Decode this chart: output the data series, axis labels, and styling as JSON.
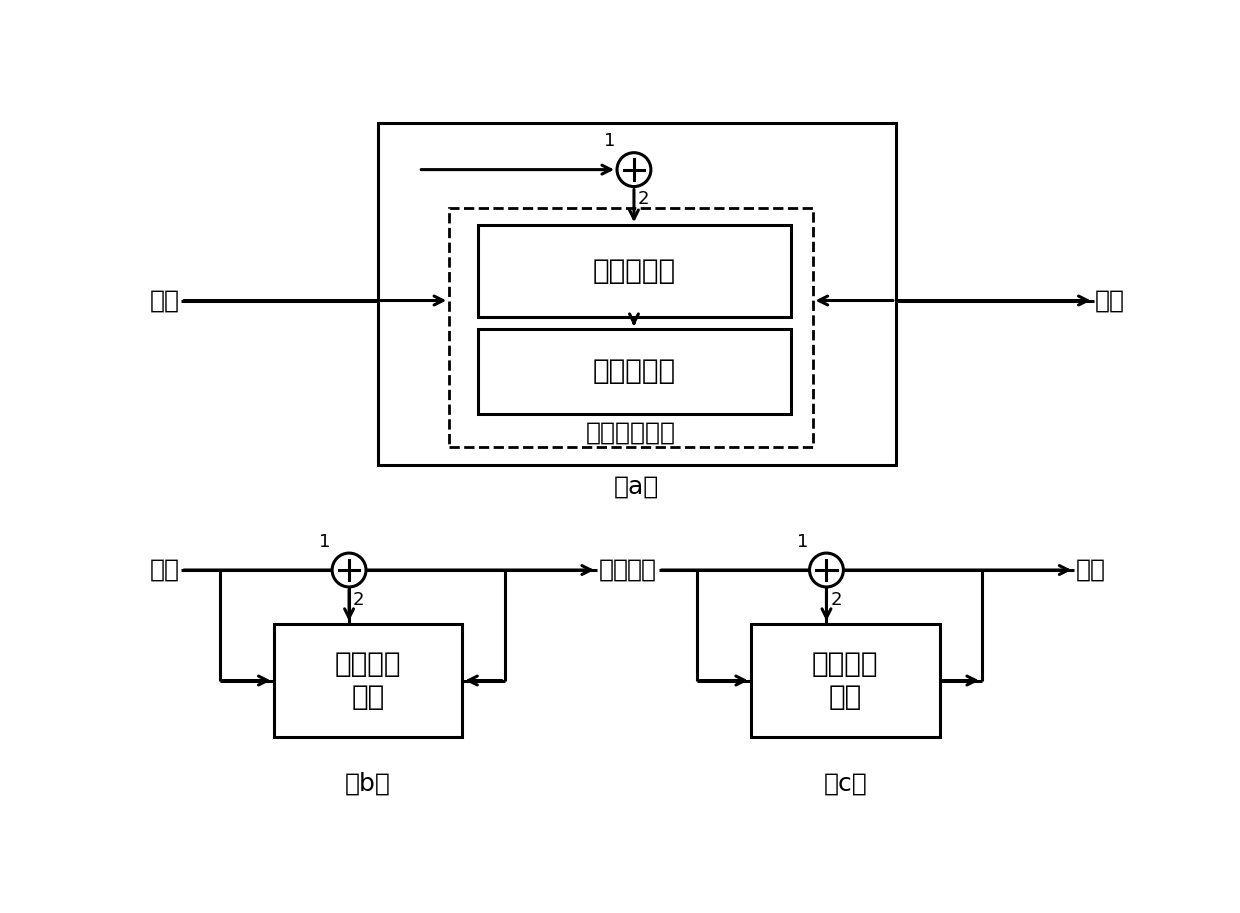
{
  "bg_color": "#ffffff",
  "line_color": "#000000",
  "title_a": "（a）",
  "title_b": "（b）",
  "title_c": "（c）",
  "label_input": "输入",
  "label_output": "输出",
  "label_digital_filter": "数字滤波器",
  "label_adaptive_algo": "自适应算法",
  "label_adaptive_filter_a": "自适应滤波器",
  "label_adaptive_filter_bc": "自适应滤\n波器",
  "label_1": "1",
  "label_2": "2",
  "font_size_label": 18,
  "font_size_title": 18,
  "font_size_number": 13,
  "font_size_box": 20,
  "font_size_dash_label": 18
}
